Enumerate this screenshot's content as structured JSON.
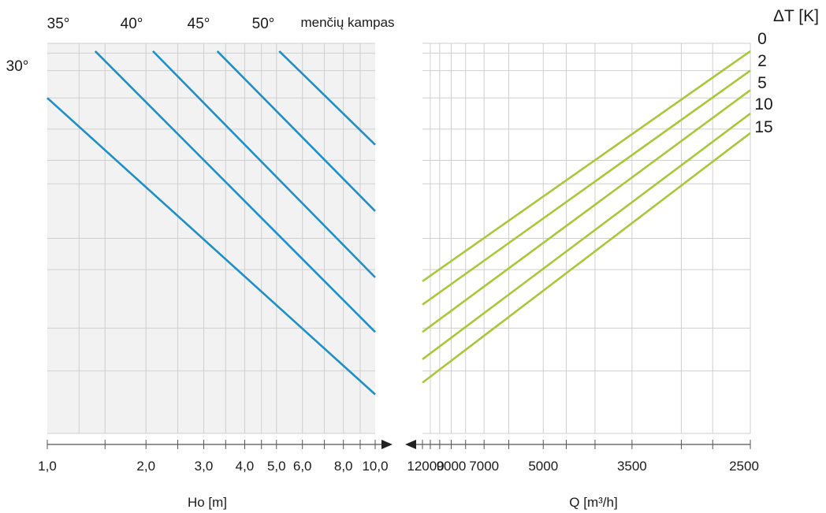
{
  "colors": {
    "blue_series": "#1f8fc8",
    "green_series": "#a8c83a",
    "grid": "#cfcfcf",
    "left_panel_bg": "#f2f2f2",
    "axis": "#555555"
  },
  "chart_data": [
    {
      "type": "line",
      "panel": "left",
      "xlabel": "Ho  [m]",
      "x_scale": "log",
      "xlim": [
        1.0,
        10.0
      ],
      "x_tick_labels": [
        "1,0",
        "2,0",
        "3,0",
        "4,0",
        "5,0",
        "6,0",
        "8,0",
        "10,0"
      ],
      "x_ticks": [
        1,
        2,
        3,
        4,
        5,
        6,
        8,
        10
      ],
      "grid": true,
      "legend_title": "menčių kampas",
      "series": [
        {
          "name": "30°",
          "x": [
            1.0,
            10.0
          ],
          "y": [
            0.86,
            0.1
          ]
        },
        {
          "name": "35°",
          "x": [
            1.4,
            10.0
          ],
          "y": [
            0.98,
            0.26
          ]
        },
        {
          "name": "40°",
          "x": [
            2.1,
            10.0
          ],
          "y": [
            0.98,
            0.4
          ]
        },
        {
          "name": "45°",
          "x": [
            3.3,
            10.0
          ],
          "y": [
            0.98,
            0.57
          ]
        },
        {
          "name": "50°",
          "x": [
            5.1,
            10.0
          ],
          "y": [
            0.98,
            0.74
          ]
        }
      ]
    },
    {
      "type": "line",
      "panel": "right",
      "xlabel": "Q [m³/h]",
      "x_scale": "reciprocal",
      "xlim": [
        12000,
        2500
      ],
      "x_tick_labels": [
        "12000",
        "9000",
        "7000",
        "5000",
        "3500",
        "2500"
      ],
      "x_ticks": [
        12000,
        9000,
        7000,
        5000,
        3500,
        2500
      ],
      "grid": true,
      "legend_title": "ΔT [K]",
      "series": [
        {
          "name": "0",
          "x": [
            12000,
            2500
          ],
          "y": [
            0.39,
            0.98
          ]
        },
        {
          "name": "2",
          "x": [
            12000,
            2500
          ],
          "y": [
            0.33,
            0.93
          ]
        },
        {
          "name": "5",
          "x": [
            12000,
            2500
          ],
          "y": [
            0.26,
            0.88
          ]
        },
        {
          "name": "10",
          "x": [
            12000,
            2500
          ],
          "y": [
            0.19,
            0.82
          ]
        },
        {
          "name": "15",
          "x": [
            12000,
            2500
          ],
          "y": [
            0.13,
            0.77
          ]
        }
      ]
    }
  ]
}
